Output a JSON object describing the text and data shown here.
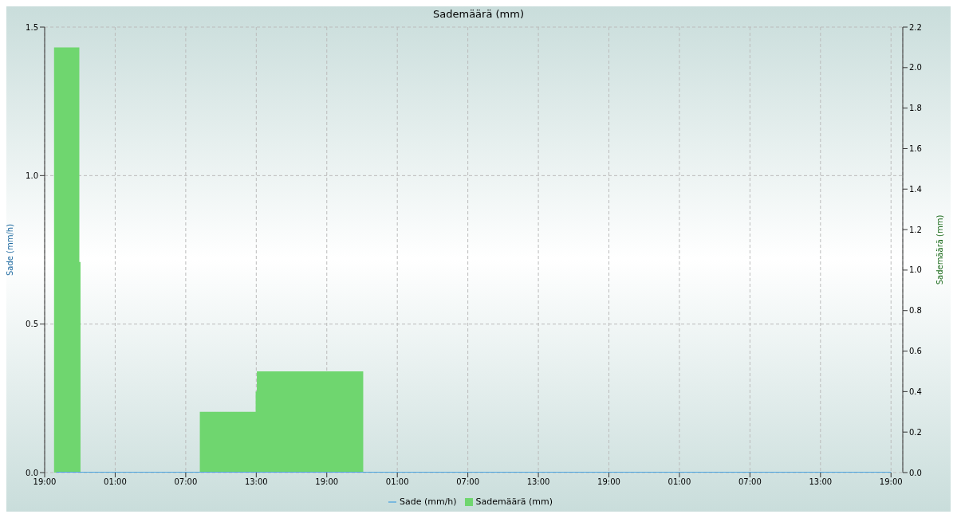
{
  "chart_data": {
    "type": "area",
    "title": "Sademäärä (mm)",
    "ylabel": "Sade (mm/h)",
    "y2label": "Sademäärä (mm)",
    "xlim": [
      "--01-01T19:00",
      "--01-04T20:00"
    ],
    "xticks": [
      {
        "value": "--01-01T19:00",
        "label": "19:00"
      },
      {
        "value": "--01-02T01:00",
        "label": "01:00"
      },
      {
        "value": "--01-02T07:00",
        "label": "07:00"
      },
      {
        "value": "--01-02T13:00",
        "label": "13:00"
      },
      {
        "value": "--01-02T19:00",
        "label": "19:00"
      },
      {
        "value": "--01-03T01:00",
        "label": "01:00"
      },
      {
        "value": "--01-03T07:00",
        "label": "07:00"
      },
      {
        "value": "--01-03T13:00",
        "label": "13:00"
      },
      {
        "value": "--01-03T19:00",
        "label": "19:00"
      },
      {
        "value": "--01-04T01:00",
        "label": "01:00"
      },
      {
        "value": "--01-04T07:00",
        "label": "07:00"
      },
      {
        "value": "--01-04T13:00",
        "label": "13:00"
      },
      {
        "value": "--01-04T19:00",
        "label": "19:00"
      }
    ],
    "ylim": [
      0,
      1.5
    ],
    "yticks": [
      {
        "value": 0,
        "label": "0.0"
      },
      0.5,
      {
        "value": 1,
        "label": "1.0"
      },
      1.5
    ],
    "y2lim": [
      0,
      2.2
    ],
    "y2ticks": [
      {
        "value": 0,
        "label": "0.0"
      },
      0.2,
      0.4,
      0.6,
      0.8,
      {
        "value": 1,
        "label": "1.0"
      },
      1.2,
      1.4,
      1.6,
      1.8,
      {
        "value": 2,
        "label": "2.0"
      },
      2.2
    ],
    "series": [
      {
        "name": "Sade (mm/h)",
        "type": "line",
        "color": "#4aa3df",
        "x": [
          "--01-01T20:00",
          "--01-04T19:00"
        ],
        "values": [
          0,
          0
        ]
      },
      {
        "name": "Sademäärä (mm)",
        "axis": "y2",
        "color": "#6fd66f",
        "x": [
          "--01-01T19:48",
          "--01-01T21:57",
          "--01-01T22:03",
          "--01-02T08:12",
          "--01-02T12:57",
          "--01-02T13:03",
          "--01-02T22:06"
        ],
        "values": [
          2.1,
          1.04,
          0,
          0.3,
          0.4,
          0.5,
          0
        ]
      }
    ],
    "grid": true,
    "legend": "bottom"
  }
}
